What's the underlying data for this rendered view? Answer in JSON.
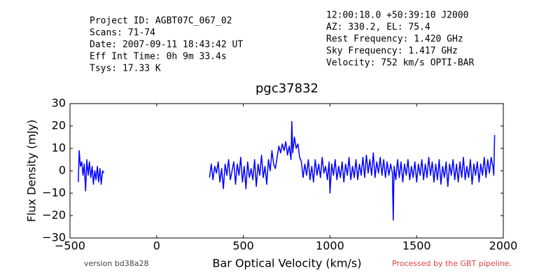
{
  "chart_data": {
    "type": "line",
    "title": "pgc37832",
    "header_left": [
      "Project ID: AGBT07C_067_02",
      "Scans: 71-74",
      "Date: 2007-09-11 18:43:42 UT",
      "Eff Int Time: 0h 9m 33.4s",
      "Tsys: 17.33 K"
    ],
    "header_right": [
      "12:00:18.0 +50:39:10 J2000",
      "AZ: 330.2, EL: 75.4",
      "Rest Frequency:   1.420 GHz",
      "Sky Frequency:    1.417 GHz",
      "Velocity: 752 km/s OPTI-BAR"
    ],
    "xlabel": "Bar Optical Velocity (km/s)",
    "ylabel": "Flux Density (mJy)",
    "footer_left": "version bd38a28",
    "footer_right": "Processed by the GBT pipeline.",
    "xlim": [
      -500,
      2000
    ],
    "ylim": [
      -30,
      30
    ],
    "xticks": [
      {
        "value": -500,
        "label": "−500"
      },
      0,
      500,
      1000,
      1500,
      2000
    ],
    "yticks": [
      {
        "value": -30,
        "label": "−30"
      },
      {
        "value": -20,
        "label": "−20"
      },
      {
        "value": -10,
        "label": "−10"
      },
      0,
      10,
      20,
      30
    ],
    "grid": false,
    "series": [
      {
        "color": "#0000ff",
        "x": [
          -452,
          -447,
          -440,
          -432,
          -425,
          -418,
          -410,
          -403,
          -395,
          -388,
          -380,
          -372,
          -365,
          -357,
          -350,
          -342,
          -335,
          -327,
          -320,
          -312,
          -305,
          null,
          305,
          315,
          325,
          335,
          345,
          355,
          365,
          375,
          385,
          395,
          405,
          415,
          425,
          435,
          445,
          455,
          465,
          475,
          485,
          495,
          505,
          515,
          525,
          535,
          545,
          555,
          565,
          575,
          585,
          595,
          605,
          615,
          625,
          635,
          645,
          655,
          665,
          675,
          685,
          695,
          705,
          715,
          725,
          735,
          745,
          755,
          765,
          775,
          780,
          785,
          795,
          805,
          815,
          825,
          835,
          845,
          855,
          865,
          875,
          885,
          895,
          905,
          915,
          925,
          935,
          945,
          955,
          965,
          975,
          985,
          995,
          1000,
          1010,
          1020,
          1030,
          1040,
          1050,
          1060,
          1070,
          1080,
          1090,
          1100,
          1110,
          1120,
          1130,
          1140,
          1150,
          1160,
          1170,
          1180,
          1190,
          1200,
          1210,
          1220,
          1230,
          1240,
          1250,
          1260,
          1270,
          1280,
          1290,
          1300,
          1310,
          1320,
          1330,
          1340,
          1350,
          1360,
          1365,
          1370,
          1380,
          1390,
          1400,
          1410,
          1420,
          1430,
          1440,
          1450,
          1460,
          1470,
          1480,
          1490,
          1500,
          1510,
          1520,
          1530,
          1540,
          1550,
          1560,
          1570,
          1580,
          1590,
          1600,
          1610,
          1620,
          1630,
          1640,
          1650,
          1660,
          1670,
          1680,
          1690,
          1700,
          1710,
          1720,
          1730,
          1740,
          1750,
          1760,
          1770,
          1780,
          1790,
          1800,
          1810,
          1820,
          1830,
          1840,
          1850,
          1860,
          1870,
          1880,
          1890,
          1900,
          1910,
          1920,
          1930,
          1940,
          1945,
          1950
        ],
        "values": [
          -5,
          9,
          2,
          4,
          -2,
          3,
          -9,
          5,
          -2,
          4,
          -3,
          2,
          -6,
          0,
          -4,
          2,
          -5,
          1,
          -6,
          0,
          -1,
          null,
          -3,
          3,
          -4,
          2,
          -1,
          4,
          -5,
          1,
          -8,
          3,
          -2,
          5,
          -4,
          0,
          4,
          -6,
          3,
          -2,
          6,
          -5,
          2,
          -8,
          4,
          -3,
          1,
          -4,
          5,
          -7,
          3,
          -2,
          7,
          -3,
          2,
          -6,
          5,
          0,
          9,
          3,
          1,
          6,
          11,
          8,
          12,
          9,
          13,
          7,
          11,
          5,
          22,
          8,
          15,
          10,
          12,
          6,
          4,
          -3,
          3,
          -2,
          5,
          -4,
          2,
          -5,
          5,
          -2,
          3,
          -3,
          6,
          -1,
          2,
          -4,
          4,
          -10,
          3,
          -2,
          5,
          -4,
          2,
          -3,
          4,
          -5,
          3,
          -2,
          6,
          -4,
          2,
          -3,
          5,
          -4,
          3,
          -2,
          6,
          -3,
          7,
          -1,
          5,
          -2,
          8,
          -3,
          4,
          -1,
          6,
          -2,
          5,
          -3,
          4,
          -2,
          3,
          -1,
          -22,
          2,
          -4,
          5,
          -3,
          4,
          -5,
          3,
          -2,
          5,
          -4,
          2,
          -3,
          4,
          -5,
          3,
          -2,
          5,
          -4,
          3,
          -3,
          6,
          -2,
          4,
          -5,
          3,
          -4,
          5,
          -6,
          2,
          -3,
          4,
          -7,
          3,
          -2,
          5,
          -4,
          3,
          -5,
          4,
          -3,
          6,
          -4,
          2,
          -3,
          5,
          -6,
          3,
          -2,
          4,
          -5,
          3,
          -2,
          6,
          -3,
          5,
          -1,
          6,
          2,
          -2,
          16
        ]
      }
    ]
  }
}
